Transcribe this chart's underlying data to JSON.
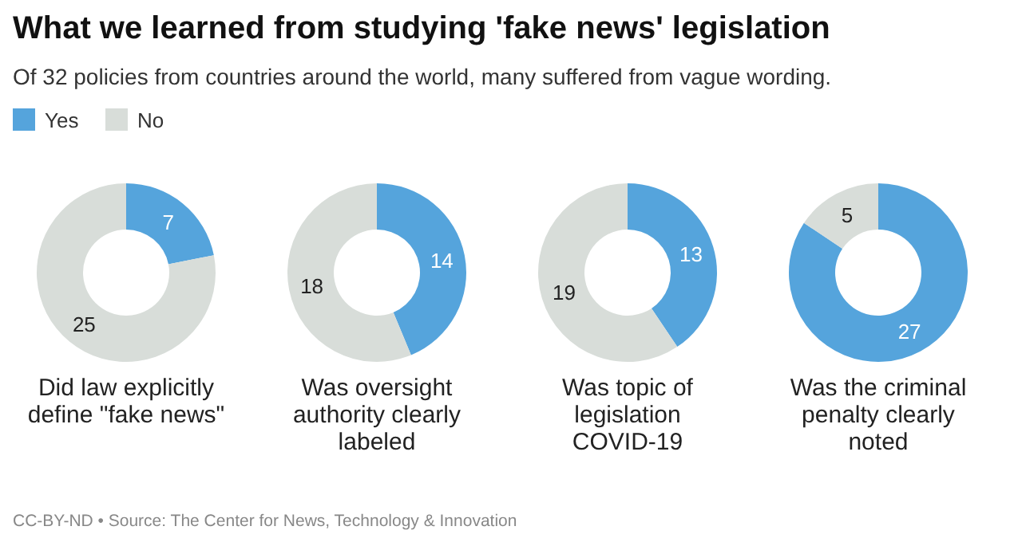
{
  "chart_data": [
    {
      "type": "other",
      "title": "What we learned from studying 'fake news' legislation",
      "subtitle": "Of 32 policies from countries around the world, many suffered from vague wording.",
      "annotations": [
        "CC-BY-ND • Source: The Center for News, Technology & Innovation"
      ]
    },
    {
      "type": "donut",
      "title": "Did law explicitly define \"fake news\"",
      "categories": [
        "Yes",
        "No"
      ],
      "values": [
        7,
        25
      ],
      "colors": [
        "#55a4dc",
        "#d8ddd9"
      ],
      "data_labels": true,
      "legend": "top left"
    },
    {
      "type": "donut",
      "title": "Was oversight authority clearly labeled",
      "categories": [
        null,
        null
      ],
      "values": [
        14,
        18
      ],
      "colors": [
        "#55a4dc",
        "#d8ddd9"
      ],
      "data_labels": true
    },
    {
      "type": "donut",
      "title": "Was topic of legislation COVID-19",
      "categories": [
        null,
        null
      ],
      "values": [
        13,
        19
      ],
      "colors": [
        "#55a4dc",
        "#d8ddd9"
      ],
      "data_labels": true
    },
    {
      "type": "donut",
      "title": "Was the criminal penalty clearly noted",
      "categories": [
        null,
        null
      ],
      "values": [
        27,
        5
      ],
      "colors": [
        "#55a4dc",
        "#d8ddd9"
      ],
      "data_labels": true
    }
  ]
}
